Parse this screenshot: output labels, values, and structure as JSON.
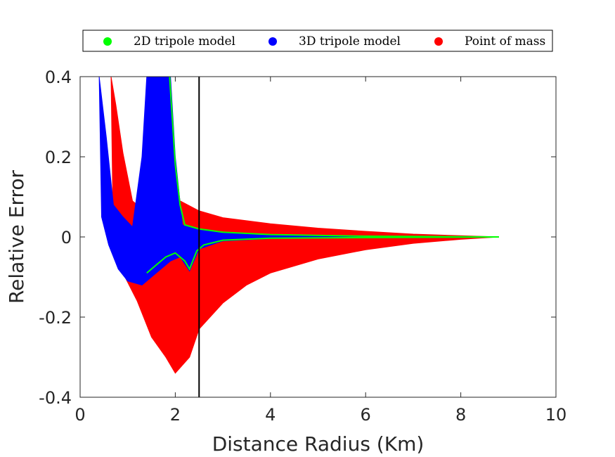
{
  "chart_data": {
    "type": "area",
    "title": "",
    "xlabel": "Distance Radius (Km)",
    "ylabel": "Relative Error",
    "xlim": [
      0,
      10
    ],
    "ylim": [
      -0.4,
      0.4
    ],
    "xticks": [
      "0",
      "2",
      "4",
      "6",
      "8",
      "10"
    ],
    "yticks": [
      "0.4",
      "0.2",
      "0",
      "-0.2",
      "-0.4"
    ],
    "legend_position": "top",
    "grid": false,
    "reference_line_x": 2.5,
    "series": [
      {
        "name": "Point of mass",
        "color": "#ff0000",
        "upper": [
          [
            0.65,
            0.4
          ],
          [
            0.75,
            0.33
          ],
          [
            0.9,
            0.21
          ],
          [
            1.1,
            0.09
          ],
          [
            1.4,
            0.06
          ],
          [
            1.7,
            0.2
          ],
          [
            1.9,
            0.23
          ],
          [
            2.1,
            0.09
          ],
          [
            2.5,
            0.065
          ],
          [
            3,
            0.048
          ],
          [
            4,
            0.033
          ],
          [
            5,
            0.022
          ],
          [
            6,
            0.014
          ],
          [
            7,
            0.007
          ],
          [
            8,
            0.003
          ],
          [
            8.8,
            0.0
          ]
        ],
        "lower": [
          [
            0.65,
            0.4
          ],
          [
            0.7,
            -0.03
          ],
          [
            0.9,
            -0.09
          ],
          [
            1.2,
            -0.16
          ],
          [
            1.5,
            -0.25
          ],
          [
            1.8,
            -0.3
          ],
          [
            2.0,
            -0.34
          ],
          [
            2.3,
            -0.3
          ],
          [
            2.5,
            -0.23
          ],
          [
            3,
            -0.165
          ],
          [
            3.5,
            -0.12
          ],
          [
            4,
            -0.09
          ],
          [
            5,
            -0.055
          ],
          [
            6,
            -0.032
          ],
          [
            7,
            -0.016
          ],
          [
            8,
            -0.006
          ],
          [
            8.8,
            0.0
          ]
        ]
      },
      {
        "name": "3D tripole model",
        "color": "#0000ff",
        "upper": [
          [
            0.4,
            0.4
          ],
          [
            0.55,
            0.25
          ],
          [
            0.7,
            0.08
          ],
          [
            0.9,
            0.05
          ],
          [
            1.1,
            0.025
          ],
          [
            1.3,
            0.2
          ],
          [
            1.4,
            0.4
          ],
          [
            1.9,
            0.4
          ],
          [
            2.0,
            0.2
          ],
          [
            2.15,
            0.03
          ],
          [
            2.5,
            0.017
          ],
          [
            3,
            0.01
          ],
          [
            4,
            0.005
          ],
          [
            6,
            0.002
          ],
          [
            8.8,
            0.0
          ]
        ],
        "lower": [
          [
            0.4,
            0.4
          ],
          [
            0.45,
            0.05
          ],
          [
            0.6,
            -0.02
          ],
          [
            0.8,
            -0.08
          ],
          [
            1.0,
            -0.11
          ],
          [
            1.3,
            -0.12
          ],
          [
            1.6,
            -0.09
          ],
          [
            1.9,
            -0.06
          ],
          [
            2.1,
            -0.05
          ],
          [
            2.3,
            -0.085
          ],
          [
            2.5,
            -0.03
          ],
          [
            3,
            -0.01
          ],
          [
            4,
            -0.004
          ],
          [
            6,
            -0.001
          ],
          [
            8.8,
            0.0
          ]
        ]
      },
      {
        "name": "2D tripole model",
        "color": "#00ff00",
        "upper": [
          [
            1.88,
            0.4
          ],
          [
            2.0,
            0.18
          ],
          [
            2.1,
            0.08
          ],
          [
            2.2,
            0.03
          ],
          [
            2.5,
            0.02
          ],
          [
            3,
            0.012
          ],
          [
            4,
            0.006
          ],
          [
            6,
            0.002
          ],
          [
            8.8,
            0.0
          ]
        ],
        "lower": [
          [
            1.4,
            -0.09
          ],
          [
            1.6,
            -0.07
          ],
          [
            1.8,
            -0.05
          ],
          [
            2.0,
            -0.04
          ],
          [
            2.2,
            -0.06
          ],
          [
            2.3,
            -0.08
          ],
          [
            2.45,
            -0.035
          ],
          [
            2.6,
            -0.02
          ],
          [
            3,
            -0.008
          ],
          [
            4,
            -0.003
          ],
          [
            8.8,
            0.0
          ]
        ]
      }
    ]
  }
}
